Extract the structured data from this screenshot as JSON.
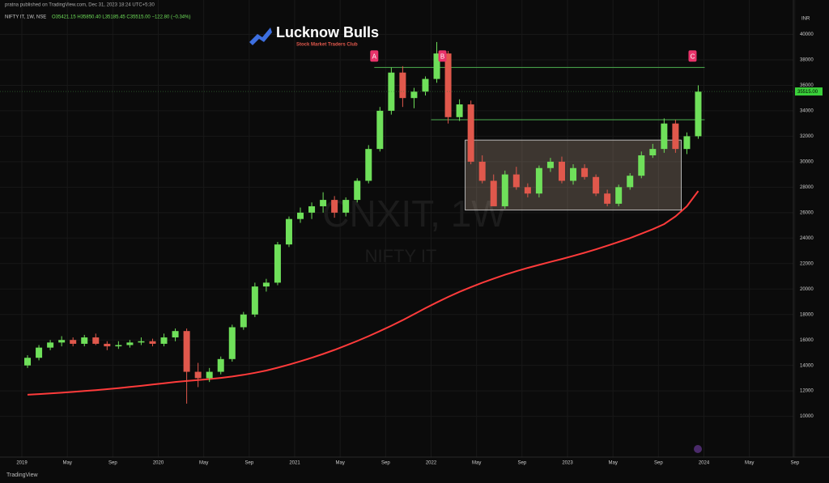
{
  "header": {
    "published": "pratna published on TradingView.com, Dec 31, 2023 18:24 UTC+5:30",
    "symbol": "NIFTY IT, 1W, NSE",
    "ohlc": "O35421.15 H35850.40 L35185.45 C35515.00 −122.80 (−0.34%)",
    "currency": "INR",
    "footer": "TradingView"
  },
  "logo": {
    "name": "Lucknow Bulls",
    "tagline": "Stock Market Traders Club"
  },
  "chart_data": {
    "type": "candlestick",
    "watermark": "CNXIT, 1W",
    "watermark_sub": "NIFTY IT",
    "up_color": "#6fe05a",
    "down_color": "#e0584c",
    "x": [
      "2019-01",
      "2019-02",
      "2019-03",
      "2019-04",
      "2019-05",
      "2019-06",
      "2019-07",
      "2019-08",
      "2019-09",
      "2019-10",
      "2019-11",
      "2019-12",
      "2020-01",
      "2020-02",
      "2020-03",
      "2020-04",
      "2020-05",
      "2020-06",
      "2020-07",
      "2020-08",
      "2020-09",
      "2020-10",
      "2020-11",
      "2020-12",
      "2021-01",
      "2021-02",
      "2021-03",
      "2021-04",
      "2021-05",
      "2021-06",
      "2021-07",
      "2021-08",
      "2021-09",
      "2021-10",
      "2021-11",
      "2021-12",
      "2022-01",
      "2022-02",
      "2022-03",
      "2022-04",
      "2022-05",
      "2022-06",
      "2022-07",
      "2022-08",
      "2022-09",
      "2022-10",
      "2022-11",
      "2022-12",
      "2023-01",
      "2023-02",
      "2023-03",
      "2023-04",
      "2023-05",
      "2023-06",
      "2023-07",
      "2023-08",
      "2023-09",
      "2023-10",
      "2023-11",
      "2023-12"
    ],
    "open": [
      14000,
      14600,
      15400,
      15800,
      16000,
      15700,
      16200,
      15700,
      15500,
      15600,
      15800,
      15900,
      15700,
      16200,
      16700,
      13500,
      13000,
      13500,
      14500,
      17000,
      18000,
      20200,
      20500,
      23500,
      25500,
      26000,
      26500,
      27000,
      26000,
      27000,
      28500,
      31000,
      34000,
      37000,
      35000,
      35500,
      36500,
      38500,
      33500,
      34500,
      30000,
      28500,
      26500,
      29000,
      28000,
      27500,
      29500,
      30000,
      28500,
      29500,
      28800,
      27500,
      26700,
      28000,
      28900,
      30500,
      31000,
      33000,
      31000,
      32000
    ],
    "high": [
      14800,
      15600,
      16000,
      16300,
      16200,
      16400,
      16500,
      15900,
      15900,
      16000,
      16200,
      16100,
      16500,
      16900,
      16900,
      14200,
      13800,
      14700,
      17200,
      18200,
      20500,
      20800,
      23700,
      25700,
      26400,
      26800,
      27600,
      27300,
      27200,
      28700,
      31300,
      34300,
      37400,
      37500,
      35800,
      36700,
      39400,
      38700,
      34900,
      34800,
      30500,
      29000,
      29300,
      29600,
      28300,
      29700,
      30300,
      30400,
      29800,
      29800,
      29000,
      27800,
      28200,
      29100,
      30800,
      31400,
      33400,
      33300,
      32300,
      36000
    ],
    "low": [
      13800,
      14400,
      15200,
      15500,
      15500,
      15500,
      15600,
      15200,
      15300,
      15400,
      15600,
      15500,
      15500,
      15900,
      11000,
      12300,
      12700,
      13300,
      14300,
      16800,
      17800,
      19800,
      20300,
      23300,
      25200,
      25500,
      26000,
      25600,
      25700,
      26800,
      28300,
      30800,
      33700,
      34300,
      34200,
      35200,
      36200,
      33000,
      33200,
      29800,
      28300,
      26500,
      26300,
      27800,
      27200,
      27200,
      29200,
      28300,
      28200,
      28600,
      27300,
      26500,
      26500,
      27800,
      28700,
      30300,
      30700,
      30700,
      30600,
      31800
    ],
    "close": [
      14600,
      15400,
      15800,
      16000,
      15700,
      16200,
      15700,
      15500,
      15600,
      15800,
      15900,
      15700,
      16200,
      16700,
      13500,
      13000,
      13500,
      14500,
      17000,
      18000,
      20200,
      20500,
      23500,
      25500,
      26000,
      26500,
      27000,
      26000,
      27000,
      28500,
      31000,
      34000,
      37000,
      35000,
      35500,
      36500,
      38500,
      33500,
      34500,
      30000,
      28500,
      26500,
      29000,
      28000,
      27500,
      29500,
      30000,
      28500,
      29500,
      28800,
      27500,
      26700,
      28000,
      28900,
      30500,
      31000,
      33000,
      31000,
      32000,
      35500
    ],
    "series": [
      {
        "color": "#ff3b3b",
        "values": [
          11700,
          11750,
          11800,
          11860,
          11920,
          11990,
          12060,
          12140,
          12220,
          12310,
          12400,
          12500,
          12600,
          12700,
          12780,
          12850,
          12930,
          13020,
          13130,
          13260,
          13420,
          13600,
          13820,
          14060,
          14320,
          14600,
          14900,
          15220,
          15560,
          15920,
          16300,
          16700,
          17120,
          17560,
          18020,
          18500,
          18950,
          19380,
          19780,
          20150,
          20500,
          20820,
          21120,
          21400,
          21660,
          21900,
          22130,
          22360,
          22600,
          22850,
          23120,
          23400,
          23700,
          24000,
          24350,
          24700,
          25100,
          25700,
          26500,
          27700
        ]
      }
    ],
    "levels": [
      {
        "y": 37400,
        "x": [
          "2021-08",
          "2023-12"
        ]
      },
      {
        "y": 33300,
        "x": [
          "2022-01",
          "2023-12"
        ]
      }
    ],
    "range_box": {
      "x": [
        "2022-04",
        "2023-11"
      ],
      "y": [
        26200,
        31700
      ]
    },
    "markers": [
      {
        "label": "A",
        "x": "2021-08",
        "y": 38300
      },
      {
        "label": "B",
        "x": "2022-02",
        "y": 38300
      },
      {
        "label": "C",
        "x": "2023-12",
        "y": 38300
      }
    ],
    "last_price": {
      "value": 35515,
      "label": "35515.00"
    },
    "ylim": [
      6800,
      42700
    ],
    "yticks": [
      10000,
      12000,
      14000,
      16000,
      18000,
      20000,
      22000,
      24000,
      26000,
      28000,
      30000,
      32000,
      34000,
      36000,
      38000,
      40000
    ],
    "xticks": [
      {
        "value": "2019-01",
        "label": "2019"
      },
      {
        "value": "2019-05",
        "label": "May"
      },
      {
        "value": "2019-09",
        "label": "Sep"
      },
      {
        "value": "2020-01",
        "label": "2020"
      },
      {
        "value": "2020-05",
        "label": "May"
      },
      {
        "value": "2020-09",
        "label": "Sep"
      },
      {
        "value": "2021-01",
        "label": "2021"
      },
      {
        "value": "2021-05",
        "label": "May"
      },
      {
        "value": "2021-09",
        "label": "Sep"
      },
      {
        "value": "2022-01",
        "label": "2022"
      },
      {
        "value": "2022-05",
        "label": "May"
      },
      {
        "value": "2022-09",
        "label": "Sep"
      },
      {
        "value": "2023-01",
        "label": "2023"
      },
      {
        "value": "2023-05",
        "label": "May"
      },
      {
        "value": "2023-09",
        "label": "Sep"
      },
      {
        "value": "2024-01",
        "label": "2024"
      },
      {
        "value": "2024-05",
        "label": "May"
      },
      {
        "value": "2024-09",
        "label": "Sep"
      }
    ],
    "grid": true
  }
}
